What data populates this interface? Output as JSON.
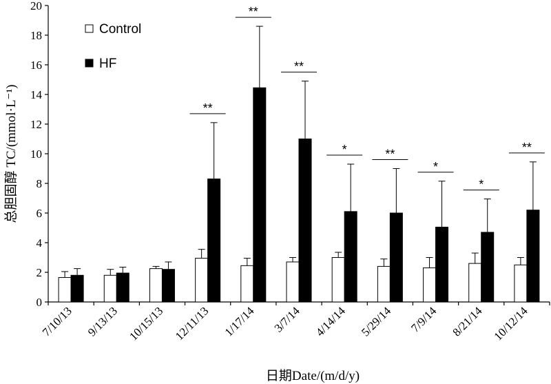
{
  "chart_data": {
    "type": "bar",
    "ylabel": "总胆固醇 TC/(mmol·L⁻¹)",
    "xlabel": "日期Date/(m/d/y)",
    "ylim": [
      0,
      20
    ],
    "yticks": [
      0,
      2,
      4,
      6,
      8,
      10,
      12,
      14,
      16,
      18,
      20
    ],
    "yticks_label": [
      "0",
      "2",
      "4",
      "6",
      "8",
      "10",
      "12",
      "14",
      "16",
      "18",
      "20"
    ],
    "categories": [
      "7/10/13",
      "9/13/13",
      "10/15/13",
      "12/11/13",
      "1/17/14",
      "3/7/14",
      "4/14/14",
      "5/29/14",
      "7/9/14",
      "8/21/14",
      "10/12/14"
    ],
    "series": [
      {
        "name": "Control",
        "fill": "#ffffff",
        "values": [
          1.65,
          1.8,
          2.25,
          2.95,
          2.45,
          2.7,
          3.0,
          2.4,
          2.3,
          2.6,
          2.5
        ],
        "errors": [
          0.4,
          0.4,
          0.15,
          0.6,
          0.5,
          0.3,
          0.35,
          0.5,
          0.7,
          0.7,
          0.5
        ]
      },
      {
        "name": "HF",
        "fill": "#000000",
        "values": [
          1.8,
          1.95,
          2.2,
          8.3,
          14.45,
          11.0,
          6.1,
          6.0,
          5.05,
          4.7,
          6.2
        ],
        "errors": [
          0.45,
          0.4,
          0.5,
          3.8,
          4.15,
          3.9,
          3.2,
          3.0,
          3.1,
          2.25,
          3.25
        ]
      }
    ],
    "significance": [
      {
        "category": "12/11/13",
        "label": "**"
      },
      {
        "category": "1/17/14",
        "label": "**"
      },
      {
        "category": "3/7/14",
        "label": "**"
      },
      {
        "category": "4/14/14",
        "label": "*"
      },
      {
        "category": "5/29/14",
        "label": "**"
      },
      {
        "category": "7/9/14",
        "label": "*"
      },
      {
        "category": "8/21/14",
        "label": "*"
      },
      {
        "category": "10/12/14",
        "label": "**"
      }
    ],
    "legend": [
      {
        "label": "Control",
        "fill": "#ffffff"
      },
      {
        "label": "HF",
        "fill": "#000000"
      }
    ],
    "legend_position": "top-left",
    "grid": false
  }
}
